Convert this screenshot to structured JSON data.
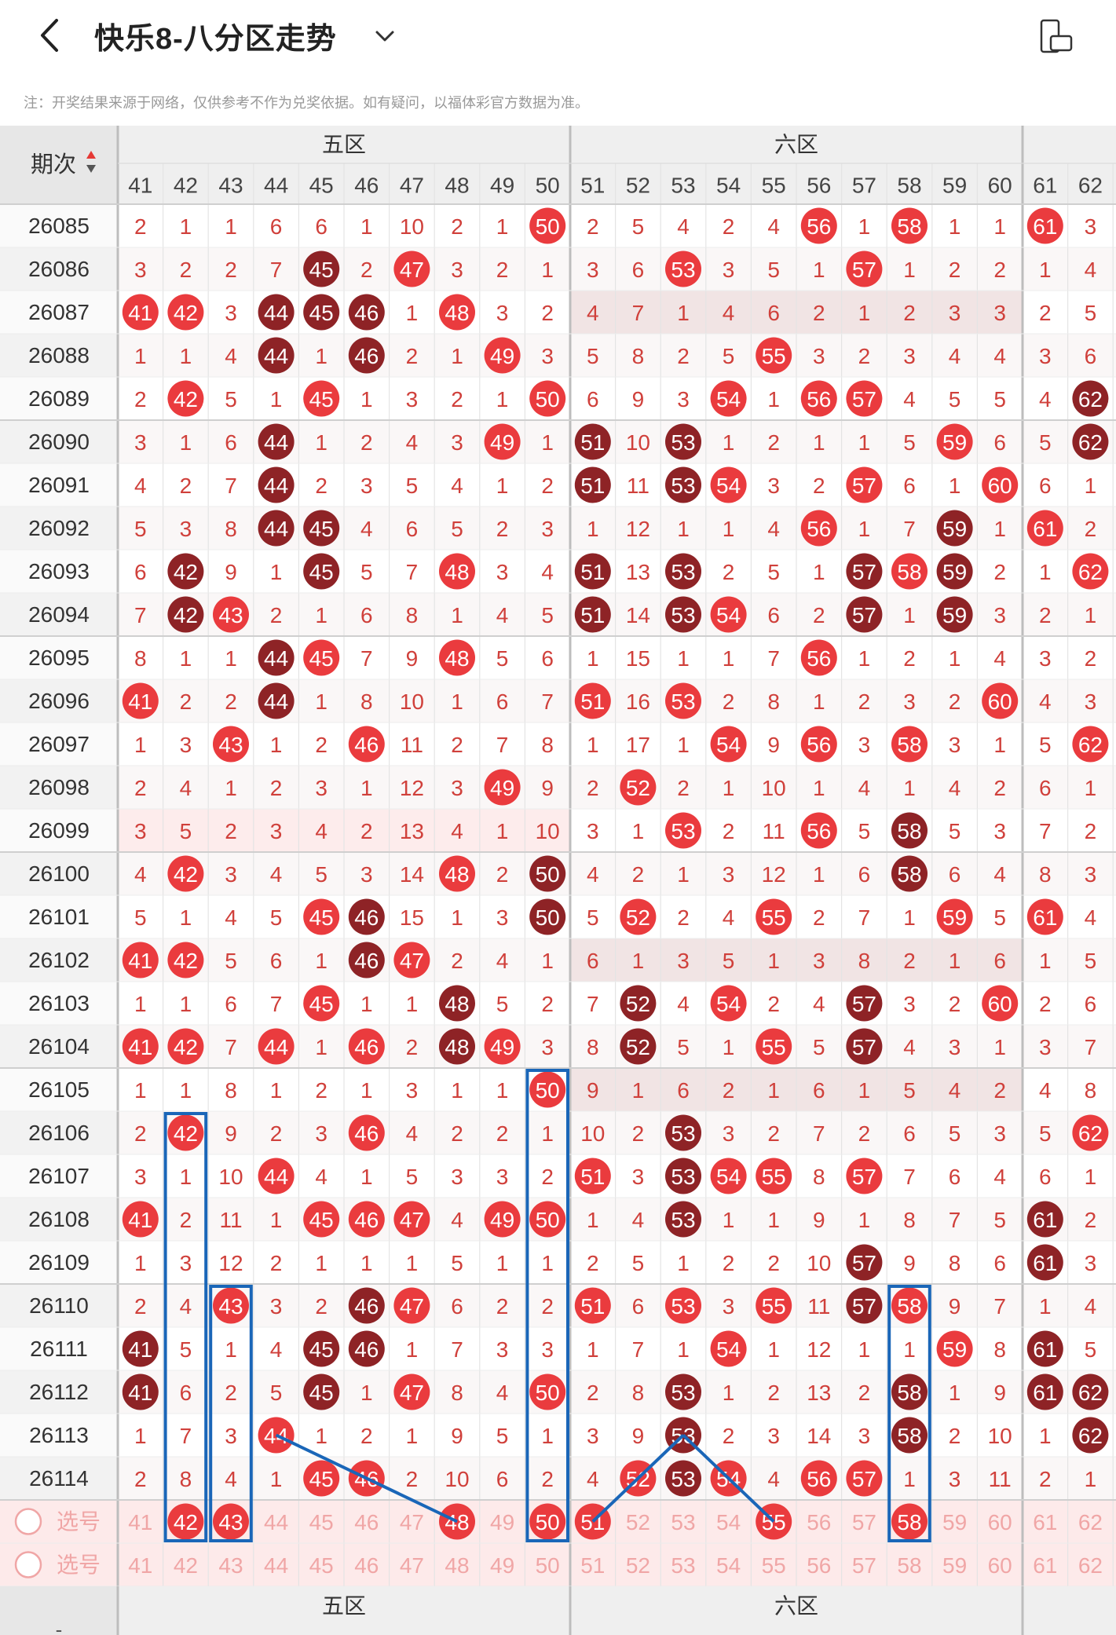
{
  "header": {
    "title": "快乐8-八分区走势",
    "back_icon": "chevron-left-icon",
    "dropdown_icon": "chevron-down-icon",
    "rotate_icon": "screen-rotate-icon"
  },
  "notice": "注：开奖结果来源于网络，仅供参考不作为兑奖依据。如有疑问，以福体彩官方数据为准。",
  "table": {
    "period_header": "期次",
    "zones": [
      {
        "label": "五区",
        "from": 41,
        "to": 50
      },
      {
        "label": "六区",
        "from": 51,
        "to": 60
      },
      {
        "label": "",
        "from": 61,
        "to": 62
      }
    ],
    "columns": [
      "41",
      "42",
      "43",
      "44",
      "45",
      "46",
      "47",
      "48",
      "49",
      "50",
      "51",
      "52",
      "53",
      "54",
      "55",
      "56",
      "57",
      "58",
      "59",
      "60",
      "61",
      "62"
    ],
    "rows": [
      {
        "period": "26085",
        "cells": [
          "2",
          "1",
          "1",
          "6",
          "6",
          "1",
          "10",
          "2",
          "1",
          "50",
          "2",
          "5",
          "4",
          "2",
          "4",
          "56",
          "1",
          "58",
          "1",
          "1",
          "61",
          "3"
        ]
      },
      {
        "period": "26086",
        "cells": [
          "3",
          "2",
          "2",
          "7",
          "45",
          "2",
          "47",
          "3",
          "2",
          "1",
          "3",
          "6",
          "53",
          "3",
          "5",
          "1",
          "57",
          "1",
          "2",
          "2",
          "1",
          "4"
        ]
      },
      {
        "period": "26087",
        "cells": [
          "41",
          "42",
          "3",
          "44",
          "45",
          "46",
          "1",
          "48",
          "3",
          "2",
          "4",
          "7",
          "1",
          "4",
          "6",
          "2",
          "1",
          "2",
          "3",
          "3",
          "2",
          "5"
        ]
      },
      {
        "period": "26088",
        "cells": [
          "1",
          "1",
          "4",
          "44",
          "1",
          "46",
          "2",
          "1",
          "49",
          "3",
          "5",
          "8",
          "2",
          "5",
          "55",
          "3",
          "2",
          "3",
          "4",
          "4",
          "3",
          "6"
        ]
      },
      {
        "period": "26089",
        "cells": [
          "2",
          "42",
          "5",
          "1",
          "45",
          "1",
          "3",
          "2",
          "1",
          "50",
          "6",
          "9",
          "3",
          "54",
          "1",
          "56",
          "57",
          "4",
          "5",
          "5",
          "4",
          "62"
        ]
      },
      {
        "period": "26090",
        "cells": [
          "3",
          "1",
          "6",
          "44",
          "1",
          "2",
          "4",
          "3",
          "49",
          "1",
          "51",
          "10",
          "53",
          "1",
          "2",
          "1",
          "1",
          "5",
          "59",
          "6",
          "5",
          "62"
        ]
      },
      {
        "period": "26091",
        "cells": [
          "4",
          "2",
          "7",
          "44",
          "2",
          "3",
          "5",
          "4",
          "1",
          "2",
          "51",
          "11",
          "53",
          "54",
          "3",
          "2",
          "57",
          "6",
          "1",
          "60",
          "6",
          "1"
        ]
      },
      {
        "period": "26092",
        "cells": [
          "5",
          "3",
          "8",
          "44",
          "45",
          "4",
          "6",
          "5",
          "2",
          "3",
          "1",
          "12",
          "1",
          "1",
          "4",
          "56",
          "1",
          "7",
          "59",
          "1",
          "61",
          "2"
        ]
      },
      {
        "period": "26093",
        "cells": [
          "6",
          "42",
          "9",
          "1",
          "45",
          "5",
          "7",
          "48",
          "3",
          "4",
          "51",
          "13",
          "53",
          "2",
          "5",
          "1",
          "57",
          "58",
          "59",
          "2",
          "1",
          "62"
        ]
      },
      {
        "period": "26094",
        "cells": [
          "7",
          "42",
          "43",
          "2",
          "1",
          "6",
          "8",
          "1",
          "4",
          "5",
          "51",
          "14",
          "53",
          "54",
          "6",
          "2",
          "57",
          "1",
          "59",
          "3",
          "2",
          "1"
        ]
      },
      {
        "period": "26095",
        "cells": [
          "8",
          "1",
          "1",
          "44",
          "45",
          "7",
          "9",
          "48",
          "5",
          "6",
          "1",
          "15",
          "1",
          "1",
          "7",
          "56",
          "1",
          "2",
          "1",
          "4",
          "3",
          "2"
        ]
      },
      {
        "period": "26096",
        "cells": [
          "41",
          "2",
          "2",
          "44",
          "1",
          "8",
          "10",
          "1",
          "6",
          "7",
          "51",
          "16",
          "53",
          "2",
          "8",
          "1",
          "2",
          "3",
          "2",
          "60",
          "4",
          "3"
        ]
      },
      {
        "period": "26097",
        "cells": [
          "1",
          "3",
          "43",
          "1",
          "2",
          "46",
          "11",
          "2",
          "7",
          "8",
          "1",
          "17",
          "1",
          "54",
          "9",
          "56",
          "3",
          "58",
          "3",
          "1",
          "5",
          "62"
        ]
      },
      {
        "period": "26098",
        "cells": [
          "2",
          "4",
          "1",
          "2",
          "3",
          "1",
          "12",
          "3",
          "49",
          "9",
          "2",
          "52",
          "2",
          "1",
          "10",
          "1",
          "4",
          "1",
          "4",
          "2",
          "6",
          "1"
        ]
      },
      {
        "period": "26099",
        "cells": [
          "3",
          "5",
          "2",
          "3",
          "4",
          "2",
          "13",
          "4",
          "1",
          "10",
          "3",
          "1",
          "53",
          "2",
          "11",
          "56",
          "5",
          "58",
          "5",
          "3",
          "7",
          "2"
        ]
      },
      {
        "period": "26100",
        "cells": [
          "4",
          "42",
          "3",
          "4",
          "5",
          "3",
          "14",
          "48",
          "2",
          "50",
          "4",
          "2",
          "1",
          "3",
          "12",
          "1",
          "6",
          "58",
          "6",
          "4",
          "8",
          "3"
        ]
      },
      {
        "period": "26101",
        "cells": [
          "5",
          "1",
          "4",
          "5",
          "45",
          "46",
          "15",
          "1",
          "3",
          "50",
          "5",
          "52",
          "2",
          "4",
          "55",
          "2",
          "7",
          "1",
          "59",
          "5",
          "61",
          "4"
        ]
      },
      {
        "period": "26102",
        "cells": [
          "41",
          "42",
          "5",
          "6",
          "1",
          "46",
          "47",
          "2",
          "4",
          "1",
          "6",
          "1",
          "3",
          "5",
          "1",
          "3",
          "8",
          "2",
          "1",
          "6",
          "1",
          "5"
        ]
      },
      {
        "period": "26103",
        "cells": [
          "1",
          "1",
          "6",
          "7",
          "45",
          "1",
          "1",
          "48",
          "5",
          "2",
          "7",
          "52",
          "4",
          "54",
          "2",
          "4",
          "57",
          "3",
          "2",
          "60",
          "2",
          "6"
        ]
      },
      {
        "period": "26104",
        "cells": [
          "41",
          "42",
          "7",
          "44",
          "1",
          "46",
          "2",
          "48",
          "49",
          "3",
          "8",
          "52",
          "5",
          "1",
          "55",
          "5",
          "57",
          "4",
          "3",
          "1",
          "3",
          "7"
        ]
      },
      {
        "period": "26105",
        "cells": [
          "1",
          "1",
          "8",
          "1",
          "2",
          "1",
          "3",
          "1",
          "1",
          "50",
          "9",
          "1",
          "6",
          "2",
          "1",
          "6",
          "1",
          "5",
          "4",
          "2",
          "4",
          "8"
        ]
      },
      {
        "period": "26106",
        "cells": [
          "2",
          "42",
          "9",
          "2",
          "3",
          "46",
          "4",
          "2",
          "2",
          "1",
          "10",
          "2",
          "53",
          "3",
          "2",
          "7",
          "2",
          "6",
          "5",
          "3",
          "5",
          "62"
        ]
      },
      {
        "period": "26107",
        "cells": [
          "3",
          "1",
          "10",
          "44",
          "4",
          "1",
          "5",
          "3",
          "3",
          "2",
          "51",
          "3",
          "53",
          "54",
          "55",
          "8",
          "57",
          "7",
          "6",
          "4",
          "6",
          "1"
        ]
      },
      {
        "period": "26108",
        "cells": [
          "41",
          "2",
          "11",
          "1",
          "45",
          "46",
          "47",
          "4",
          "49",
          "50",
          "1",
          "4",
          "53",
          "1",
          "1",
          "9",
          "1",
          "8",
          "7",
          "5",
          "61",
          "2"
        ]
      },
      {
        "period": "26109",
        "cells": [
          "1",
          "3",
          "12",
          "2",
          "1",
          "1",
          "1",
          "5",
          "1",
          "1",
          "2",
          "5",
          "1",
          "2",
          "2",
          "10",
          "57",
          "9",
          "8",
          "6",
          "61",
          "3"
        ]
      },
      {
        "period": "26110",
        "cells": [
          "2",
          "4",
          "43",
          "3",
          "2",
          "46",
          "47",
          "6",
          "2",
          "2",
          "51",
          "6",
          "53",
          "3",
          "55",
          "11",
          "57",
          "58",
          "9",
          "7",
          "1",
          "4"
        ]
      },
      {
        "period": "26111",
        "cells": [
          "41",
          "5",
          "1",
          "4",
          "45",
          "46",
          "1",
          "7",
          "3",
          "3",
          "1",
          "7",
          "1",
          "54",
          "1",
          "12",
          "1",
          "1",
          "59",
          "8",
          "61",
          "5"
        ]
      },
      {
        "period": "26112",
        "cells": [
          "41",
          "6",
          "2",
          "5",
          "45",
          "1",
          "47",
          "8",
          "4",
          "50",
          "2",
          "8",
          "53",
          "1",
          "2",
          "13",
          "2",
          "58",
          "1",
          "9",
          "61",
          "62"
        ]
      },
      {
        "period": "26113",
        "cells": [
          "1",
          "7",
          "3",
          "44",
          "1",
          "2",
          "1",
          "9",
          "5",
          "1",
          "3",
          "9",
          "53",
          "2",
          "3",
          "14",
          "3",
          "58",
          "2",
          "10",
          "1",
          "62"
        ]
      },
      {
        "period": "26114",
        "cells": [
          "2",
          "8",
          "4",
          "1",
          "45",
          "46",
          "2",
          "10",
          "6",
          "2",
          "4",
          "52",
          "53",
          "54",
          "4",
          "56",
          "57",
          "1",
          "3",
          "11",
          "2",
          "1"
        ]
      }
    ],
    "select_rows": [
      {
        "label": "选号",
        "picked": [
          "42",
          "43",
          "48",
          "50",
          "51",
          "55",
          "58"
        ]
      },
      {
        "label": "选号",
        "picked": []
      }
    ],
    "footer_zones": [
      "五区",
      "六区"
    ],
    "footer_left": "-",
    "colors": {
      "hit": "#ea3b3e",
      "repeat": "#8e2326",
      "text": "#d0403b",
      "faint": "#f0a6a6",
      "box": "#1a66b8",
      "line": "#1a66b8"
    }
  }
}
